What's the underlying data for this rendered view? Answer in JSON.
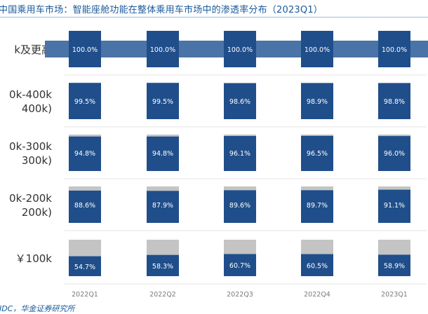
{
  "title": "中国乘用车市场：智能座舱功能在整体乘用车市场中的渗透率分布（2023Q1）",
  "source": "IDC，华金证券研究所",
  "colors": {
    "filled": "#1f4e8a",
    "remainder": "#c4c4c4",
    "accent": "#4a74a8",
    "title": "#1a5a9a",
    "axis": "#7a7a7a"
  },
  "chart_data": {
    "type": "bar",
    "subtype": "100% stacked bar grid",
    "categories": [
      "2022Q1",
      "2022Q2",
      "2022Q3",
      "2022Q4",
      "2023Q1"
    ],
    "rows": [
      {
        "label_lines": [
          "k及更高"
        ],
        "values": [
          100.0,
          100.0,
          100.0,
          100.0,
          100.0
        ]
      },
      {
        "label_lines": [
          "0k-400k",
          "400k)"
        ],
        "values": [
          99.5,
          99.5,
          98.6,
          98.9,
          98.8
        ]
      },
      {
        "label_lines": [
          "0k-300k",
          "300k)"
        ],
        "values": [
          94.8,
          94.8,
          96.1,
          96.5,
          96.0
        ]
      },
      {
        "label_lines": [
          "0k-200k",
          "200k)"
        ],
        "values": [
          88.6,
          87.9,
          89.6,
          89.7,
          91.1
        ]
      },
      {
        "label_lines": [
          "￥100k"
        ],
        "values": [
          54.7,
          58.3,
          60.7,
          60.5,
          58.9
        ]
      }
    ],
    "value_format": "{v}%",
    "ylim": [
      0,
      100
    ],
    "grid": false,
    "legend": "none"
  }
}
